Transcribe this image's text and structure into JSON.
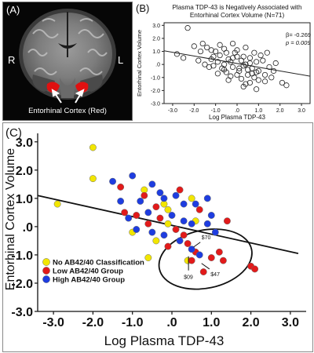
{
  "panel_a": {
    "label": "(A)",
    "left_side": "R",
    "right_side": "L",
    "caption": "Entorhinal Cortex (Red)",
    "colors": {
      "highlight": "#e01010"
    }
  },
  "colors": {
    "no_classification": "#f2e600",
    "low_group": "#e21a1a",
    "high_group": "#1e3de0",
    "line": "#111111"
  },
  "chart_data": [
    {
      "type": "scatter",
      "panel_label": "(B)",
      "title": "Plasma TDP-43 is Negatively Associated with Entorhinal Cortex Volume (N=71)",
      "xlabel": "Log Plasma TDP-43",
      "ylabel": "Entorhinal Cortex Volume",
      "xlim": [
        -3.4,
        3.4
      ],
      "ylim": [
        -3.0,
        3.2
      ],
      "xticks": [
        "-3.0",
        "-2.0",
        "-1.0",
        ".0",
        "1.0",
        "2.0",
        "3.0"
      ],
      "yticks": [
        "3.0",
        "2.0",
        "1.0",
        ".0",
        "-1.0",
        "-2.0",
        "-3.0"
      ],
      "beta_text": "β= -0.269",
      "p_text": "p = 0.009",
      "regression": {
        "x1": -3.4,
        "y1": 1.05,
        "x2": 3.4,
        "y2": -0.9
      },
      "points": [
        [
          -2.3,
          2.8
        ],
        [
          -2.0,
          1.4
        ],
        [
          -2.8,
          0.8
        ],
        [
          -1.6,
          1.6
        ],
        [
          -1.4,
          1.3
        ],
        [
          -1.2,
          0.4
        ],
        [
          -1.0,
          1.0
        ],
        [
          -0.8,
          0.7
        ],
        [
          -1.3,
          -0.2
        ],
        [
          -1.1,
          -0.1
        ],
        [
          -0.6,
          1.2
        ],
        [
          -0.5,
          0.9
        ],
        [
          -0.9,
          0.2
        ],
        [
          -0.4,
          0.4
        ],
        [
          -0.7,
          -0.3
        ],
        [
          -0.5,
          -0.6
        ],
        [
          -0.3,
          0.2
        ],
        [
          -0.2,
          1.6
        ],
        [
          -0.1,
          0.9
        ],
        [
          0.0,
          0.6
        ],
        [
          -0.2,
          -0.2
        ],
        [
          0.1,
          -0.5
        ],
        [
          0.2,
          0.3
        ],
        [
          -0.3,
          -0.9
        ],
        [
          0.0,
          1.1
        ],
        [
          0.3,
          -0.1
        ],
        [
          0.5,
          -0.8
        ],
        [
          0.4,
          0.0
        ],
        [
          0.6,
          0.5
        ],
        [
          0.4,
          1.3
        ],
        [
          0.7,
          -0.3
        ],
        [
          0.8,
          -1.0
        ],
        [
          0.9,
          0.2
        ],
        [
          0.6,
          -1.4
        ],
        [
          1.0,
          -0.5
        ],
        [
          1.1,
          0.7
        ],
        [
          0.3,
          -1.7
        ],
        [
          1.3,
          -0.8
        ],
        [
          1.5,
          -0.2
        ],
        [
          1.4,
          0.9
        ],
        [
          1.6,
          -1.0
        ],
        [
          2.1,
          -1.4
        ],
        [
          2.3,
          -1.6
        ],
        [
          1.8,
          0.1
        ],
        [
          0.9,
          -1.9
        ],
        [
          -1.8,
          0.3
        ],
        [
          -1.5,
          0.0
        ],
        [
          -0.9,
          -0.7
        ],
        [
          -0.6,
          0.0
        ],
        [
          0.2,
          -1.1
        ],
        [
          0.8,
          0.9
        ],
        [
          1.2,
          0.3
        ],
        [
          -0.4,
          -1.2
        ],
        [
          0.5,
          -0.4
        ],
        [
          -1.7,
          1.0
        ],
        [
          -1.1,
          0.6
        ],
        [
          0.0,
          -0.8
        ],
        [
          0.7,
          -0.7
        ],
        [
          1.0,
          -1.2
        ],
        [
          -0.2,
          0.5
        ],
        [
          0.3,
          0.6
        ],
        [
          -2.5,
          0.5
        ],
        [
          -0.8,
          1.5
        ],
        [
          0.6,
          0.1
        ],
        [
          1.3,
          -1.3
        ],
        [
          -0.6,
          -0.4
        ],
        [
          0.1,
          -0.3
        ],
        [
          0.9,
          -0.6
        ],
        [
          -1.2,
          1.1
        ],
        [
          0.4,
          -1.5
        ],
        [
          1.7,
          -0.5
        ]
      ]
    },
    {
      "type": "scatter",
      "panel_label": "(C)",
      "xlabel": "Log Plasma TDP-43",
      "ylabel": "Entorhinal Cortex Volume",
      "xlim": [
        -3.4,
        3.4
      ],
      "ylim": [
        -3.0,
        3.3
      ],
      "xticks": [
        "-3.0",
        "-2.0",
        "-1.0",
        ".0",
        "1.0",
        "2.0",
        "3.0"
      ],
      "yticks": [
        "3.0",
        "2.0",
        "1.0",
        ".0",
        "-1.0",
        "-2.0",
        "-3.0"
      ],
      "regression": {
        "x1": -3.4,
        "y1": 1.1,
        "x2": 3.2,
        "y2": -0.95
      },
      "legend": [
        {
          "name": "No AB42/40 Classification",
          "color": "#f2e600"
        },
        {
          "name": "Low AB42/40 Group",
          "color": "#e21a1a"
        },
        {
          "name": "High AB42/40 Group",
          "color": "#1e3de0"
        }
      ],
      "legend_position": "bottom-left",
      "annotations": [
        "$70",
        "$09",
        "$47"
      ],
      "series": [
        {
          "name": "No AB42/40 Classification",
          "color": "#f2e600",
          "points": [
            [
              -2.0,
              2.8
            ],
            [
              -2.0,
              1.7
            ],
            [
              -2.9,
              0.8
            ],
            [
              -0.7,
              1.3
            ],
            [
              -0.2,
              0.8
            ],
            [
              -0.1,
              0.6
            ],
            [
              -1.0,
              -0.2
            ],
            [
              0.5,
              1.0
            ],
            [
              -0.4,
              -0.5
            ],
            [
              0.6,
              0.2
            ],
            [
              -0.6,
              -1.1
            ],
            [
              0.4,
              -1.2
            ],
            [
              -0.1,
              0.1
            ]
          ]
        },
        {
          "name": "Low AB42/40 Group",
          "color": "#e21a1a",
          "points": [
            [
              -1.3,
              1.4
            ],
            [
              -0.7,
              1.1
            ],
            [
              -1.2,
              0.5
            ],
            [
              -0.4,
              0.7
            ],
            [
              0.2,
              1.3
            ],
            [
              -0.3,
              0.3
            ],
            [
              0.1,
              -0.1
            ],
            [
              0.3,
              -0.3
            ],
            [
              0.7,
              0.6
            ],
            [
              -0.6,
              0.1
            ],
            [
              0.4,
              -0.6
            ],
            [
              0.6,
              -0.9
            ],
            [
              0.5,
              -1.2
            ],
            [
              0.8,
              -1.6
            ],
            [
              1.2,
              -0.9
            ],
            [
              1.3,
              -1.2
            ],
            [
              2.0,
              -1.4
            ],
            [
              2.1,
              -1.5
            ],
            [
              1.4,
              0.2
            ],
            [
              -0.1,
              -0.7
            ],
            [
              -0.9,
              0.4
            ],
            [
              1.0,
              -1.1
            ]
          ]
        },
        {
          "name": "High AB42/40 Group",
          "color": "#1e3de0",
          "points": [
            [
              -1.5,
              1.6
            ],
            [
              -1.0,
              1.8
            ],
            [
              -0.5,
              1.5
            ],
            [
              -0.3,
              1.2
            ],
            [
              -0.8,
              0.9
            ],
            [
              -0.2,
              1.0
            ],
            [
              0.1,
              1.1
            ],
            [
              0.3,
              0.8
            ],
            [
              0.6,
              0.8
            ],
            [
              0.9,
              1.0
            ],
            [
              1.0,
              0.4
            ],
            [
              0.0,
              0.4
            ],
            [
              -0.6,
              0.5
            ],
            [
              0.3,
              0.2
            ],
            [
              0.5,
              0.1
            ],
            [
              -0.2,
              -0.3
            ],
            [
              -0.9,
              -0.1
            ],
            [
              -1.1,
              0.3
            ],
            [
              0.5,
              -0.8
            ],
            [
              0.7,
              -1.0
            ],
            [
              0.2,
              -0.5
            ],
            [
              1.1,
              -0.2
            ],
            [
              0.9,
              0.1
            ],
            [
              -0.5,
              -0.2
            ],
            [
              -1.3,
              0.9
            ]
          ]
        }
      ]
    }
  ]
}
